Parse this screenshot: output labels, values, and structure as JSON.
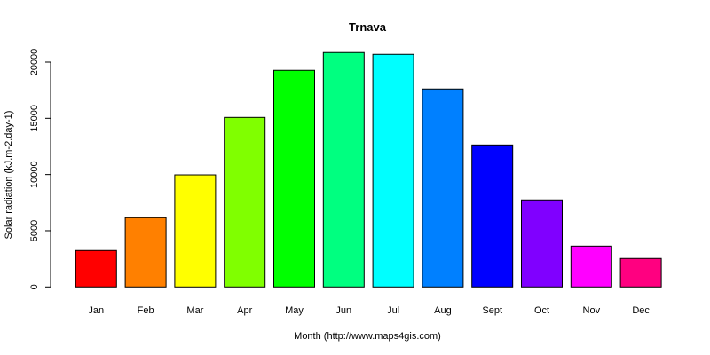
{
  "chart_data": {
    "type": "bar",
    "title": "Trnava",
    "xlabel": "Month (http://www.maps4gis.com)",
    "ylabel": "Solar radiation (kJ.m-2.day-1)",
    "categories": [
      "Jan",
      "Feb",
      "Mar",
      "Apr",
      "May",
      "Jun",
      "Jul",
      "Aug",
      "Sept",
      "Oct",
      "Nov",
      "Dec"
    ],
    "values": [
      3240,
      6160,
      9970,
      15080,
      19270,
      20850,
      20690,
      17610,
      12630,
      7740,
      3630,
      2530
    ],
    "colors": [
      "#FF0000",
      "#FF8000",
      "#FFFF00",
      "#80FF00",
      "#00FF00",
      "#00FF80",
      "#00FFFF",
      "#0080FF",
      "#0000FF",
      "#8000FF",
      "#FF00FF",
      "#FF0080"
    ],
    "yticks": [
      0,
      5000,
      10000,
      15000,
      20000
    ],
    "ytick_labels": [
      "0",
      "5000",
      "10000",
      "15000",
      "20000"
    ],
    "ylim": [
      0,
      20850
    ],
    "grid": false,
    "legend": null
  }
}
